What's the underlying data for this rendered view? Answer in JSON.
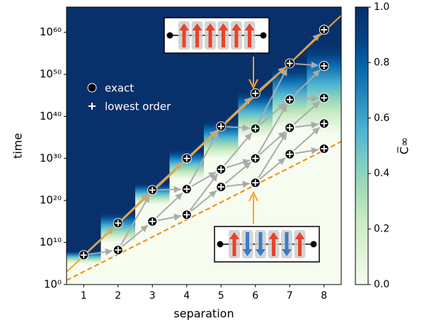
{
  "chart_data": {
    "type": "scatter",
    "x_label": "separation",
    "y_label": "time",
    "colorbar_label": "C̅∞",
    "xlim": [
      0.5,
      8.5
    ],
    "xticks": [
      1,
      2,
      3,
      4,
      5,
      6,
      7,
      8
    ],
    "ylim": [
      1,
      1e+66
    ],
    "log_y": true,
    "yticks": [
      {
        "value": 1,
        "label": "10⁰"
      },
      {
        "value": 10000000000.0,
        "label": "10¹⁰"
      },
      {
        "value": 1e+20,
        "label": "10²⁰"
      },
      {
        "value": 1e+30,
        "label": "10³⁰"
      },
      {
        "value": 1e+40,
        "label": "10⁴⁰"
      },
      {
        "value": 1e+50,
        "label": "10⁵⁰"
      },
      {
        "value": 1e+60,
        "label": "10⁶⁰"
      }
    ],
    "clim": [
      0,
      1
    ],
    "cticks": [
      {
        "value": 0,
        "label": "0.0"
      },
      {
        "value": 0.2,
        "label": "0.2"
      },
      {
        "value": 0.4,
        "label": "0.4"
      },
      {
        "value": 0.6,
        "label": "0.6"
      },
      {
        "value": 0.8,
        "label": "0.8"
      },
      {
        "value": 1,
        "label": "1.0"
      }
    ],
    "colormap": [
      "#f7fcf0",
      "#e0f3db",
      "#ccebc5",
      "#a8ddb5",
      "#7bccc4",
      "#4eb3d3",
      "#2b8cbe",
      "#0868ac",
      "#084081",
      "#08306b"
    ],
    "heatmap": {
      "separation": [
        1,
        2,
        3,
        4,
        5,
        6,
        7,
        8
      ],
      "ramp_low": [
        100000.0,
        10000000000.0,
        1e+19,
        1e+25,
        1e+30,
        1e+35,
        1e+37,
        1e+36
      ],
      "ramp_high": [
        100000000.0,
        1e+17,
        1e+24,
        1e+32,
        1e+39,
        1e+46,
        1e+52,
        1e+57
      ]
    },
    "series": [
      {
        "name": "exact",
        "color": "#000000",
        "x": [
          1,
          2,
          2,
          3,
          3,
          4,
          4,
          4,
          5,
          5,
          5,
          6,
          6,
          6,
          6,
          7,
          7,
          7,
          7,
          8,
          8,
          8,
          8,
          8
        ],
        "y": [
          10000000.0,
          160000000.0,
          400000000000000.0,
          1000000000000000.0,
          3e+22,
          4e+16,
          5e+22,
          1e+30,
          1.6e+23,
          2.5e+27,
          4e+37,
          1.6e+24,
          1e+30,
          1.3e+37,
          3e+45,
          1e+31,
          2e+37,
          1e+44,
          4e+52,
          2e+32,
          2e+38,
          2.5e+44,
          1e+52,
          4e+60
        ]
      },
      {
        "name": "lowest order",
        "color": "#ffffff",
        "x": [
          1,
          2,
          2,
          3,
          3,
          4,
          4,
          4,
          5,
          5,
          5,
          6,
          6,
          6,
          6,
          7,
          7,
          7,
          7,
          8,
          8,
          8,
          8,
          8
        ],
        "y": [
          10000000.0,
          160000000.0,
          400000000000000.0,
          1000000000000000.0,
          3e+22,
          4e+16,
          5e+22,
          1e+30,
          1.6e+23,
          2.5e+27,
          4e+37,
          1.6e+24,
          1e+30,
          1.3e+37,
          3e+45,
          1e+31,
          2e+37,
          1e+44,
          4e+52,
          2e+32,
          2e+38,
          2.5e+44,
          1e+52,
          4e+60
        ]
      }
    ],
    "lines": [
      {
        "color": "#f5a623",
        "dashed": false,
        "x": [
          0.5,
          8.5
        ],
        "y": [
          1000.0,
          1e+64
        ]
      },
      {
        "color": "#f08c00",
        "dashed": true,
        "x": [
          0.5,
          8.5
        ],
        "y": [
          10.0,
          1e+34
        ]
      }
    ]
  }
}
